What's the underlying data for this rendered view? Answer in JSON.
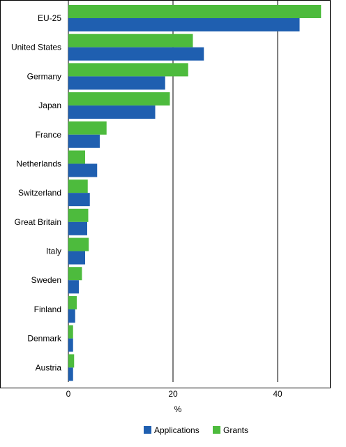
{
  "chart_data": {
    "type": "bar",
    "orientation": "horizontal",
    "categories": [
      "EU-25",
      "United States",
      "Germany",
      "Japan",
      "France",
      "Netherlands",
      "Switzerland",
      "Great Britain",
      "Italy",
      "Sweden",
      "Finland",
      "Denmark",
      "Austria"
    ],
    "series": [
      {
        "name": "Applications",
        "color": "#1f5fb0",
        "values": [
          44.2,
          25.9,
          18.5,
          16.6,
          6.0,
          5.5,
          4.1,
          3.6,
          3.2,
          2.0,
          1.3,
          0.9,
          0.9
        ]
      },
      {
        "name": "Grants",
        "color": "#4dbb3d",
        "values": [
          48.3,
          23.8,
          22.9,
          19.4,
          7.3,
          3.2,
          3.7,
          3.8,
          3.9,
          2.6,
          1.6,
          0.9,
          1.1
        ]
      }
    ],
    "xlabel": "%",
    "xlim": [
      0,
      50
    ],
    "xticks": [
      "0",
      "20",
      "40"
    ],
    "grid": "vertical",
    "legend_position": "bottom"
  }
}
